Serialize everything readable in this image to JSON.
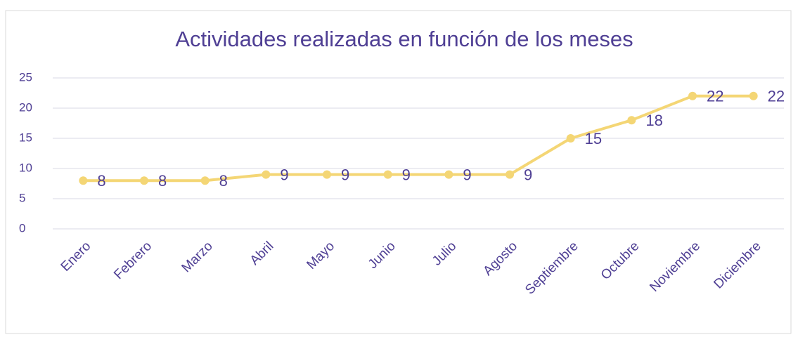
{
  "chart_data": {
    "type": "line",
    "title": "Actividades realizadas en función de los meses",
    "categories": [
      "Enero",
      "Febrero",
      "Marzo",
      "Abril",
      "Mayo",
      "Junio",
      "Julio",
      "Agosto",
      "Septiembre",
      "Octubre",
      "Noviembre",
      "Diciembre"
    ],
    "values": [
      8,
      8,
      8,
      9,
      9,
      9,
      9,
      9,
      15,
      18,
      22,
      22
    ],
    "color": "#f4d675",
    "ylim": [
      0,
      25
    ],
    "yticks": [
      0,
      5,
      10,
      15,
      20,
      25
    ],
    "grid": true
  }
}
